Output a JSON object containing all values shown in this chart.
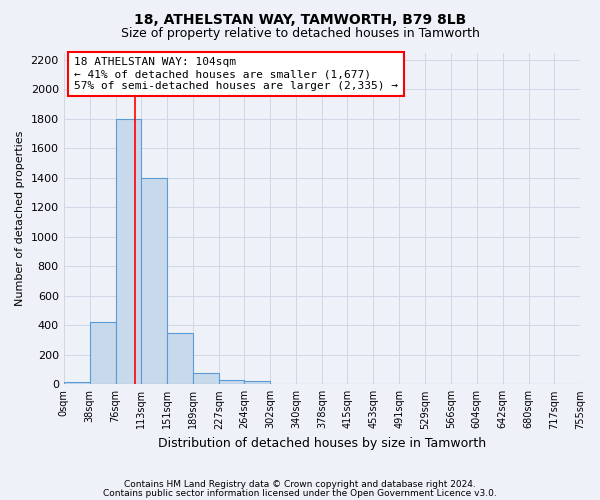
{
  "title1": "18, ATHELSTAN WAY, TAMWORTH, B79 8LB",
  "title2": "Size of property relative to detached houses in Tamworth",
  "xlabel": "Distribution of detached houses by size in Tamworth",
  "ylabel": "Number of detached properties",
  "footer1": "Contains HM Land Registry data © Crown copyright and database right 2024.",
  "footer2": "Contains public sector information licensed under the Open Government Licence v3.0.",
  "bin_edges": [
    0,
    38,
    76,
    113,
    151,
    189,
    227,
    264,
    302,
    340,
    378,
    415,
    453,
    491,
    529,
    566,
    604,
    642,
    680,
    717,
    755
  ],
  "bar_heights": [
    15,
    420,
    1800,
    1400,
    350,
    80,
    30,
    20,
    0,
    0,
    0,
    0,
    0,
    0,
    0,
    0,
    0,
    0,
    0,
    0
  ],
  "bar_color": "#c9d9ec",
  "bar_edgecolor": "#5b9bd5",
  "grid_color": "#d0d8e8",
  "background_color": "#eef2f8",
  "red_line_x": 104,
  "annotation_line1": "18 ATHELSTAN WAY: 104sqm",
  "annotation_line2": "← 41% of detached houses are smaller (1,677)",
  "annotation_line3": "57% of semi-detached houses are larger (2,335) →",
  "annotation_box_color": "white",
  "annotation_box_edgecolor": "red",
  "ylim": [
    0,
    2250
  ],
  "yticks": [
    0,
    200,
    400,
    600,
    800,
    1000,
    1200,
    1400,
    1600,
    1800,
    2000,
    2200
  ]
}
